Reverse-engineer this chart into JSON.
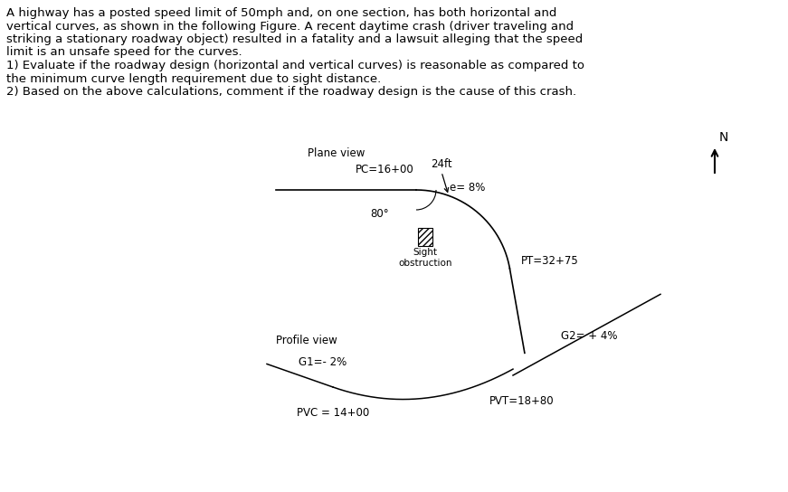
{
  "text_block": [
    "A highway has a posted speed limit of 50mph and, on one section, has both horizontal and",
    "vertical curves, as shown in the following Figure. A recent daytime crash (driver traveling and",
    "striking a stationary roadway object) resulted in a fatality and a lawsuit alleging that the speed",
    "limit is an unsafe speed for the curves.",
    "1) Evaluate if the roadway design (horizontal and vertical curves) is reasonable as compared to",
    "the minimum curve length requirement due to sight distance.",
    "2) Based on the above calculations, comment if the roadway design is the cause of this crash."
  ],
  "plane_view_label": "Plane view",
  "pc_label": "PC=16+00",
  "pt_label": "PT=32+75",
  "e_label": "e= 8%",
  "ft_label": "24ft",
  "sight_label": "Sight\nobstruction",
  "angle_label": "80°",
  "north_label": "N",
  "profile_view_label": "Profile view",
  "g1_label": "G1=- 2%",
  "g2_label": "G2= + 4%",
  "pvc_label": "PVC = 14+00",
  "pvt_label": "PVT=18+80",
  "bg_color": "#ffffff",
  "line_color": "#000000",
  "font_size_text": 9.5,
  "font_size_labels": 8.5
}
